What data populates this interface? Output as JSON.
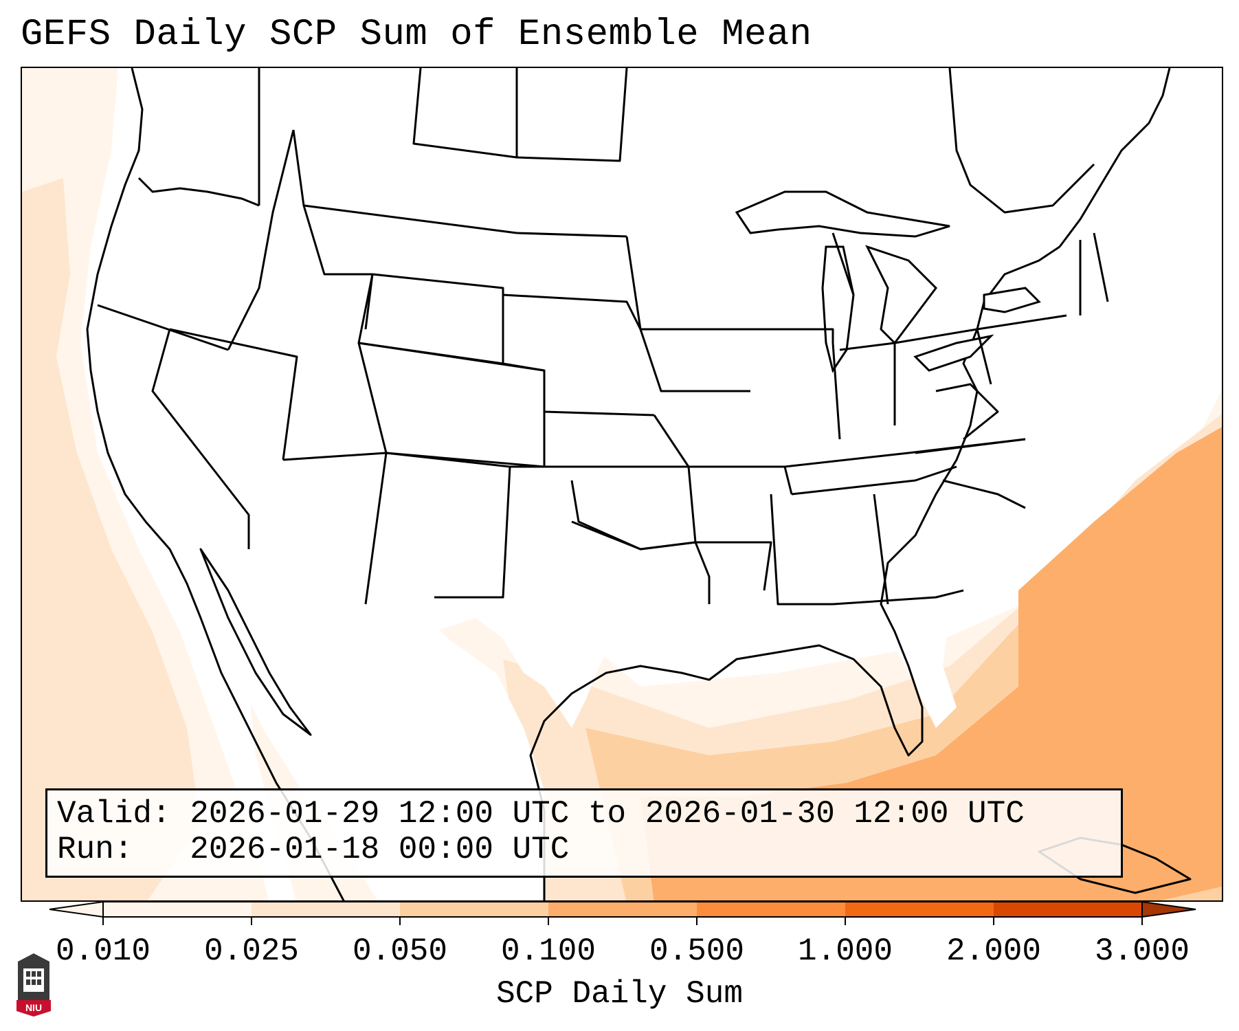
{
  "title": "GEFS Daily SCP Sum of Ensemble Mean",
  "info": {
    "valid_label": "Valid:",
    "valid_value": "2026-01-29 12:00 UTC to 2026-01-30 12:00 UTC",
    "run_label": "Run:",
    "run_value": "2026-01-18 00:00 UTC"
  },
  "colorbar": {
    "label": "SCP Daily Sum",
    "ticks": [
      "0.010",
      "0.025",
      "0.050",
      "0.100",
      "0.500",
      "1.000",
      "2.000",
      "3.000"
    ],
    "colors": [
      "#fff5eb",
      "#fee6ce",
      "#fdd0a2",
      "#fdae6b",
      "#fd8d3c",
      "#f16913",
      "#d94801",
      "#a63603"
    ]
  },
  "logo": {
    "text": "NIU",
    "icon": "niu-logo-icon"
  }
}
